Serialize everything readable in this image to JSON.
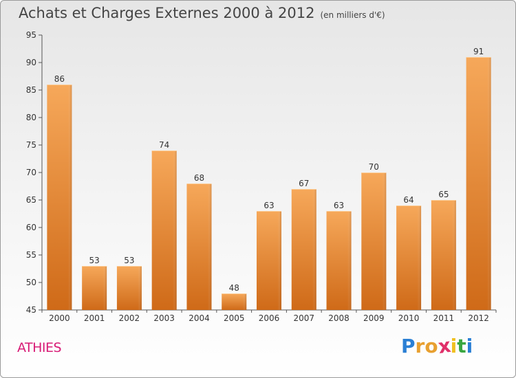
{
  "title": "Achats et Charges Externes 2000 à 2012",
  "subtitle": "(en milliers d'€)",
  "commune": "ATHIES",
  "logo": {
    "letters": [
      {
        "ch": "P",
        "color": "#2a7fd4"
      },
      {
        "ch": "r",
        "color": "#e8a030"
      },
      {
        "ch": "o",
        "color": "#e8a030"
      },
      {
        "ch": "x",
        "color": "#e0306a"
      },
      {
        "ch": "i",
        "color": "#f0c020"
      },
      {
        "ch": "t",
        "color": "#3aa640"
      },
      {
        "ch": "i",
        "color": "#2a7fd4"
      }
    ]
  },
  "colors": {
    "bar_top": "#f6a85a",
    "bar_bottom": "#cf6a18",
    "axis": "#555555",
    "grid": "#bdbdbd"
  },
  "chart_data": {
    "type": "bar",
    "title": "Achats et Charges Externes 2000 à 2012",
    "subtitle": "(en milliers d'€)",
    "categories": [
      "2000",
      "2001",
      "2002",
      "2003",
      "2004",
      "2005",
      "2006",
      "2007",
      "2008",
      "2009",
      "2010",
      "2011",
      "2012"
    ],
    "values": [
      86,
      53,
      53,
      74,
      68,
      48,
      63,
      67,
      63,
      70,
      64,
      65,
      91
    ],
    "xlabel": "",
    "ylabel": "",
    "ylim": [
      45,
      95
    ],
    "yticks": [
      45,
      50,
      55,
      60,
      65,
      70,
      75,
      80,
      85,
      90,
      95
    ],
    "grid": false,
    "legend": "none"
  }
}
